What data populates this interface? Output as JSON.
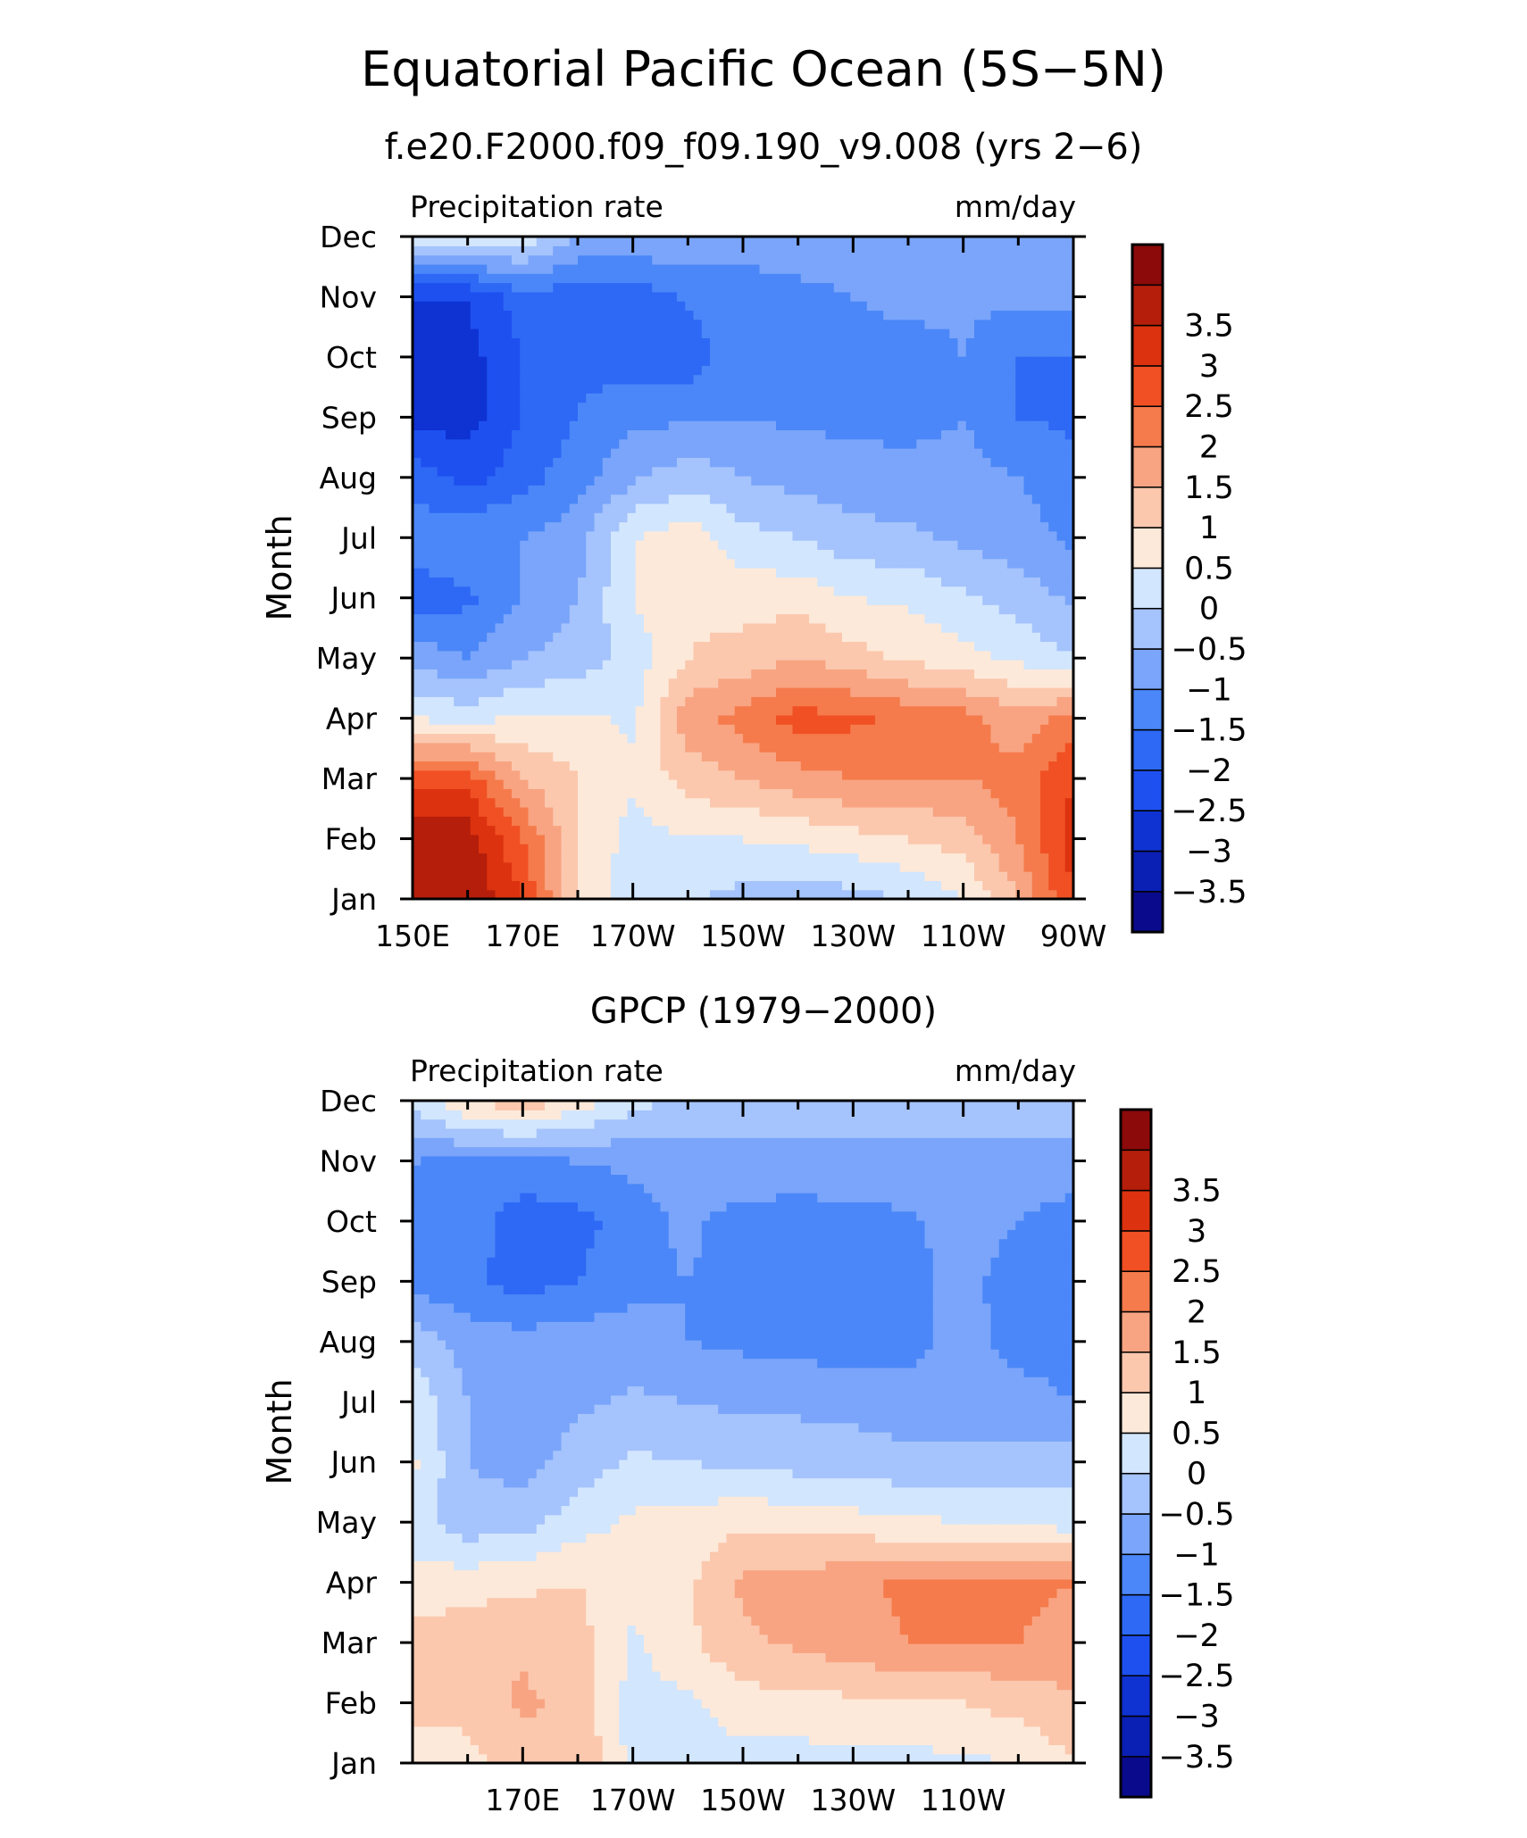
{
  "figure": {
    "title": "Equatorial Pacific Ocean (5S−5N)"
  },
  "colorbar": {
    "colors": [
      "#0a0a8c",
      "#0a1fb4",
      "#0f32d2",
      "#1e50f0",
      "#2d69f5",
      "#4b87f8",
      "#7aa5fa",
      "#a5c3fc",
      "#d2e6fe",
      "#fde9d9",
      "#fbc8ae",
      "#f8a482",
      "#f57b4c",
      "#f05023",
      "#dc320f",
      "#b41e0a",
      "#8c0a0a"
    ],
    "labels": [
      "−3.5",
      "−3",
      "−2.5",
      "−2",
      "−1.5",
      "−1",
      "−0.5",
      "0",
      "0.5",
      "1",
      "1.5",
      "2",
      "2.5",
      "3",
      "3.5"
    ]
  },
  "chart_data": [
    {
      "type": "heatmap",
      "title": "f.e20.F2000.f09_f09.190_v9.008 (yrs 2−6)",
      "left_label": "Precipitation rate",
      "right_label": "mm/day",
      "ylabel": "Month",
      "x_tick_labels": [
        "150E",
        "170E",
        "170W",
        "150W",
        "130W",
        "110W",
        "90W"
      ],
      "y_tick_labels": [
        "Jan",
        "Feb",
        "Mar",
        "Apr",
        "May",
        "Jun",
        "Jul",
        "Aug",
        "Sep",
        "Oct",
        "Nov",
        "Dec"
      ],
      "x_range": [
        "150E",
        "90W"
      ],
      "levels": [
        -3.5,
        -3,
        -2.5,
        -2,
        -1.5,
        -1,
        -0.5,
        0,
        0.5,
        1,
        1.5,
        2,
        2.5,
        3,
        3.5
      ],
      "x_nodes": [
        "150E",
        "160E",
        "170E",
        "180",
        "170W",
        "160W",
        "150W",
        "140W",
        "130W",
        "120W",
        "110W",
        "100W",
        "90W"
      ],
      "values": [
        [
          4.0,
          4.0,
          3.0,
          1.0,
          0.1,
          0.1,
          -0.2,
          -0.3,
          -0.2,
          0.0,
          0.5,
          1.5,
          3.0
        ],
        [
          4.0,
          3.8,
          2.5,
          1.0,
          0.3,
          0.5,
          0.5,
          0.6,
          0.8,
          1.0,
          1.2,
          2.0,
          3.2
        ],
        [
          2.8,
          2.8,
          1.5,
          1.0,
          0.6,
          1.2,
          1.5,
          1.8,
          2.0,
          2.0,
          2.0,
          2.2,
          3.0
        ],
        [
          0.5,
          0.3,
          0.6,
          0.6,
          0.4,
          1.8,
          2.2,
          2.7,
          2.6,
          2.4,
          2.2,
          1.7,
          2.2
        ],
        [
          -0.7,
          -1.0,
          -0.5,
          -0.3,
          0.2,
          1.0,
          1.2,
          1.5,
          1.2,
          0.9,
          0.7,
          0.4,
          0.0
        ],
        [
          -1.8,
          -1.6,
          -1.0,
          -0.5,
          0.5,
          0.9,
          0.8,
          0.8,
          0.5,
          0.4,
          0.1,
          -0.2,
          -0.6
        ],
        [
          -1.2,
          -1.0,
          -1.0,
          -0.7,
          0.5,
          0.8,
          0.2,
          0.0,
          -0.3,
          -0.4,
          -0.6,
          -0.8,
          -1.1
        ],
        [
          -1.7,
          -2.2,
          -1.7,
          -1.2,
          -0.6,
          -0.2,
          -0.5,
          -0.7,
          -0.8,
          -0.8,
          -0.8,
          -1.0,
          -1.3
        ],
        [
          -2.7,
          -2.7,
          -2.0,
          -1.5,
          -1.1,
          -1.1,
          -1.0,
          -1.1,
          -1.1,
          -1.2,
          -1.0,
          -1.5,
          -1.6
        ],
        [
          -3.0,
          -2.7,
          -2.0,
          -1.6,
          -1.8,
          -1.8,
          -1.2,
          -1.2,
          -1.2,
          -1.3,
          -1.0,
          -1.5,
          -1.5
        ],
        [
          -2.5,
          -2.5,
          -1.7,
          -1.8,
          -1.8,
          -1.4,
          -1.2,
          -1.1,
          -1.0,
          -0.8,
          -0.9,
          -0.9,
          -0.9
        ],
        [
          0.5,
          0.5,
          0.3,
          -0.5,
          -0.6,
          -0.6,
          -0.8,
          -0.8,
          -0.8,
          -0.8,
          -0.8,
          -0.8,
          -0.7
        ]
      ]
    },
    {
      "type": "heatmap",
      "title": "GPCP (1979−2000)",
      "left_label": "Precipitation rate",
      "right_label": "mm/day",
      "ylabel": "Month",
      "x_tick_labels": [
        "170E",
        "170W",
        "150W",
        "130W",
        "110W"
      ],
      "y_tick_labels": [
        "Jan",
        "Feb",
        "Mar",
        "Apr",
        "May",
        "Jun",
        "Jul",
        "Aug",
        "Sep",
        "Oct",
        "Nov",
        "Dec"
      ],
      "x_range": [
        "150E",
        "90W"
      ],
      "levels": [
        -3.5,
        -3,
        -2.5,
        -2,
        -1.5,
        -1,
        -0.5,
        0,
        0.5,
        1,
        1.5,
        2,
        2.5,
        3,
        3.5
      ],
      "x_nodes": [
        "150E",
        "160E",
        "170E",
        "180",
        "170W",
        "160W",
        "150W",
        "140W",
        "130W",
        "120W",
        "110W",
        "100W",
        "90W"
      ],
      "values": [
        [
          0.6,
          0.8,
          1.2,
          1.5,
          0.3,
          0.2,
          0.3,
          0.3,
          0.3,
          0.3,
          0.4,
          0.5,
          1.0
        ],
        [
          1.2,
          1.2,
          1.6,
          1.3,
          0.3,
          0.4,
          0.8,
          0.8,
          0.9,
          1.0,
          1.0,
          1.2,
          1.4
        ],
        [
          1.2,
          1.3,
          1.4,
          1.2,
          0.4,
          0.9,
          1.4,
          1.6,
          1.8,
          2.0,
          2.0,
          2.0,
          1.8
        ],
        [
          0.7,
          0.8,
          0.9,
          1.0,
          0.7,
          0.9,
          1.6,
          1.7,
          1.9,
          2.1,
          2.0,
          2.1,
          2.0
        ],
        [
          0.2,
          -0.3,
          -0.2,
          0.3,
          0.6,
          0.7,
          0.9,
          0.8,
          0.7,
          0.6,
          0.5,
          0.4,
          0.3
        ],
        [
          0.6,
          -0.5,
          -0.7,
          -0.3,
          0.1,
          0.0,
          -0.1,
          -0.2,
          -0.2,
          -0.4,
          -0.4,
          -0.3,
          -0.2
        ],
        [
          0.4,
          -0.5,
          -0.7,
          -0.6,
          -0.4,
          -0.5,
          -0.6,
          -0.6,
          -0.7,
          -0.7,
          -0.7,
          -0.8,
          -1.0
        ],
        [
          -0.2,
          -0.7,
          -0.8,
          -0.7,
          -0.8,
          -1.0,
          -1.1,
          -1.2,
          -1.2,
          -1.2,
          -0.8,
          -1.2,
          -1.2
        ],
        [
          -1.2,
          -1.4,
          -1.7,
          -1.5,
          -1.1,
          -1.0,
          -1.2,
          -1.4,
          -1.4,
          -1.2,
          -0.8,
          -1.3,
          -1.3
        ],
        [
          -1.0,
          -1.2,
          -1.8,
          -1.7,
          -1.2,
          -0.9,
          -1.2,
          -1.3,
          -1.2,
          -1.1,
          -0.7,
          -1.0,
          -1.3
        ],
        [
          -1.0,
          -1.1,
          -1.1,
          -1.0,
          -0.9,
          -0.7,
          -0.6,
          -0.6,
          -0.6,
          -0.6,
          -0.6,
          -0.6,
          -0.6
        ],
        [
          0.2,
          1.0,
          1.4,
          0.8,
          0.2,
          -0.2,
          -0.3,
          -0.3,
          -0.3,
          -0.3,
          -0.3,
          -0.3,
          -0.3
        ]
      ]
    }
  ]
}
